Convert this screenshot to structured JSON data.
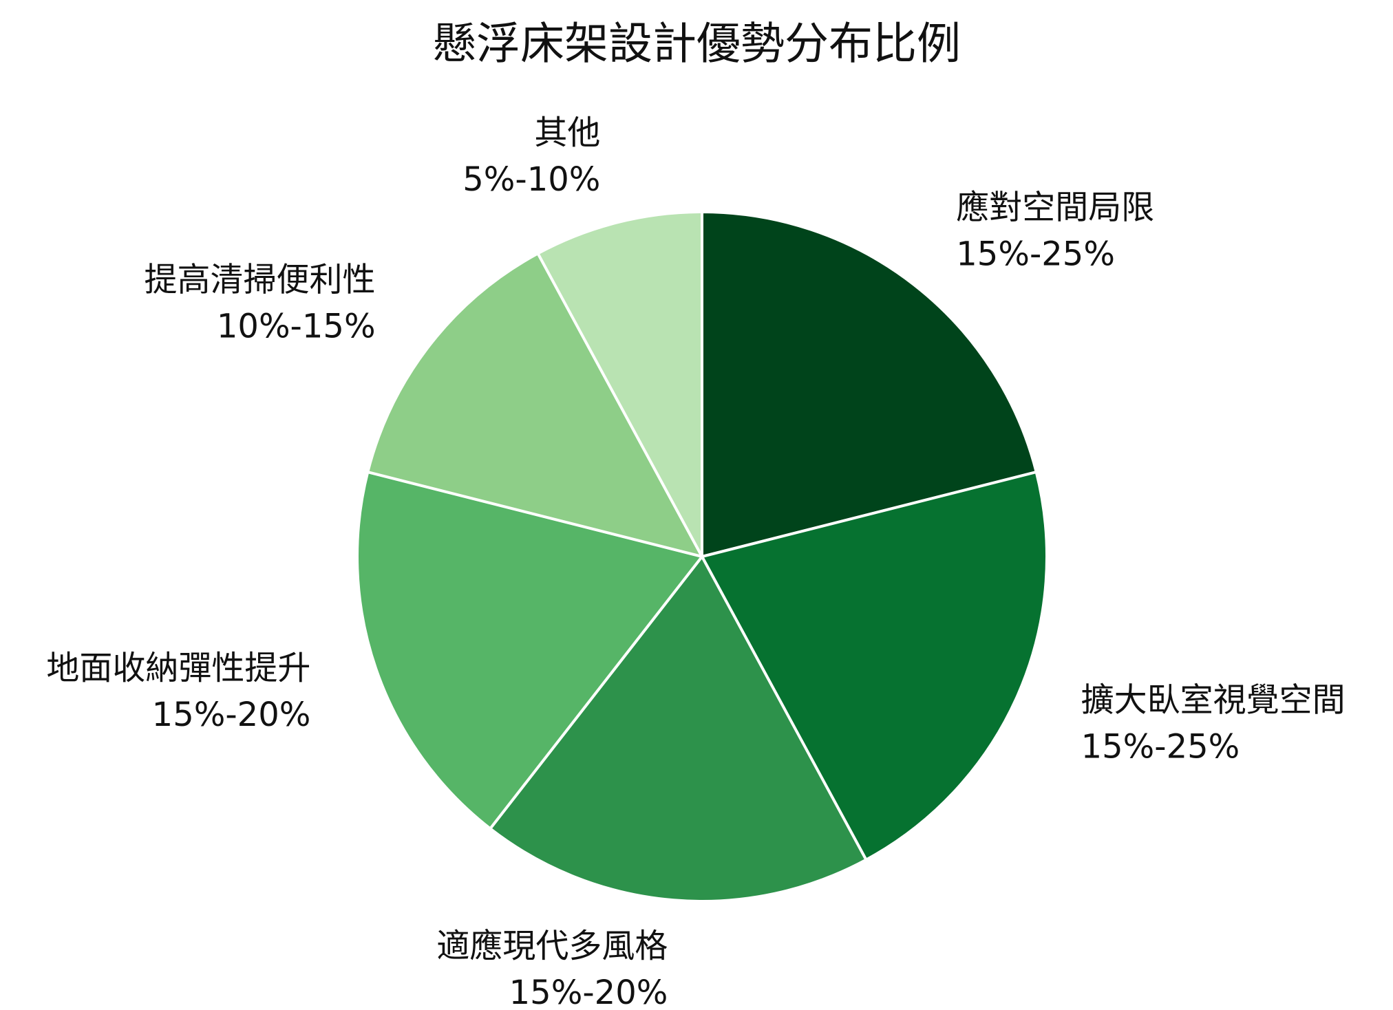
{
  "chart_data": {
    "type": "pie",
    "title": "懸浮床架設計優勢分布比例",
    "categories": [
      "應對空間局限",
      "擴大臥室視覺空間",
      "適應現代多風格",
      "地面收納彈性提升",
      "提高清掃便利性",
      "其他"
    ],
    "values": [
      20,
      20,
      17.5,
      17.5,
      12.5,
      7.5
    ],
    "value_labels": [
      "15%-25%",
      "15%-25%",
      "15%-20%",
      "15%-20%",
      "10%-15%",
      "5%-10%"
    ],
    "colors": [
      "#00441b",
      "#067230",
      "#2d924b",
      "#56b567",
      "#8ece88",
      "#b9e3b2"
    ]
  }
}
